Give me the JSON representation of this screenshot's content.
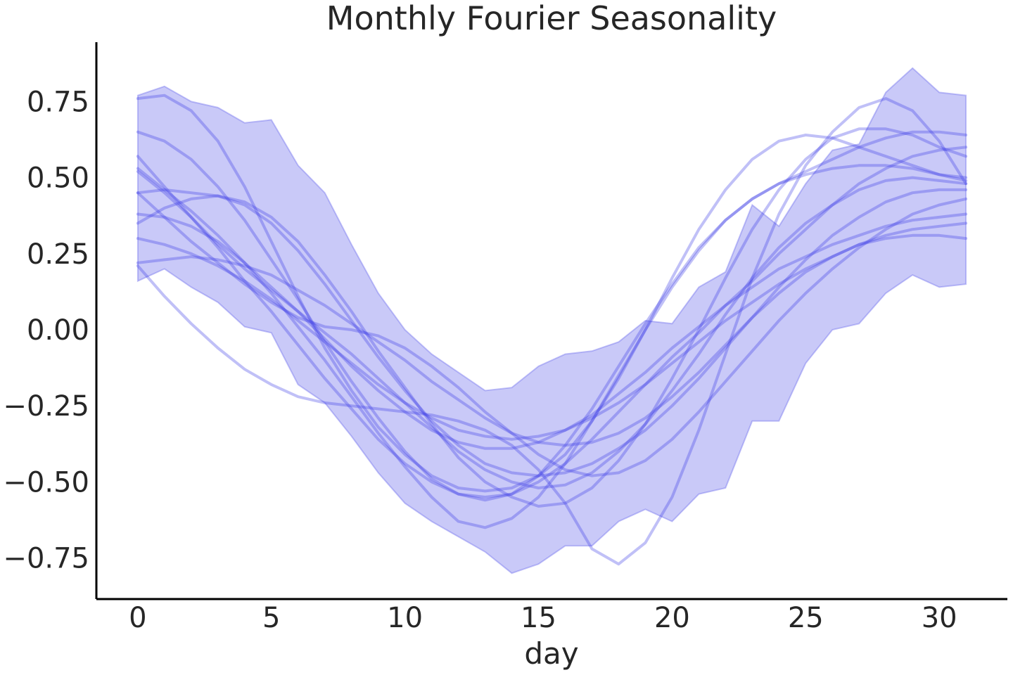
{
  "chart_data": {
    "type": "line",
    "title": "Monthly Fourier Seasonality",
    "xlabel": "day",
    "ylabel": "",
    "xlim": [
      -1.55,
      32.55
    ],
    "ylim": [
      -0.885,
      0.945
    ],
    "xticks": [
      0,
      5,
      10,
      15,
      20,
      25,
      30
    ],
    "yticks": [
      0.75,
      0.5,
      0.25,
      0.0,
      -0.25,
      -0.5,
      -0.75
    ],
    "ytick_labels": [
      "0.75",
      "0.50",
      "0.25",
      "0.00",
      "−0.25",
      "−0.50",
      "−0.75"
    ],
    "grid": false,
    "legend": "none",
    "colors": {
      "band": "#5a5aeb",
      "line": "#3b3be6",
      "axis": "#000000",
      "text": "#262626"
    },
    "band": {
      "x": [
        0,
        1,
        2,
        3,
        4,
        5,
        6,
        7,
        8,
        9,
        10,
        11,
        12,
        13,
        14,
        15,
        16,
        17,
        18,
        19,
        20,
        21,
        22,
        23,
        24,
        25,
        26,
        27,
        28,
        29,
        30,
        31
      ],
      "upper": [
        0.77,
        0.8,
        0.75,
        0.73,
        0.68,
        0.69,
        0.54,
        0.45,
        0.28,
        0.12,
        0.0,
        -0.08,
        -0.14,
        -0.2,
        -0.19,
        -0.12,
        -0.08,
        -0.07,
        -0.04,
        0.03,
        0.02,
        0.14,
        0.19,
        0.41,
        0.34,
        0.48,
        0.59,
        0.61,
        0.78,
        0.86,
        0.78,
        0.77
      ],
      "lower": [
        0.16,
        0.2,
        0.14,
        0.09,
        0.01,
        -0.01,
        -0.18,
        -0.24,
        -0.35,
        -0.47,
        -0.57,
        -0.63,
        -0.68,
        -0.73,
        -0.8,
        -0.77,
        -0.71,
        -0.71,
        -0.63,
        -0.59,
        -0.63,
        -0.54,
        -0.52,
        -0.3,
        -0.3,
        -0.11,
        0.0,
        0.02,
        0.12,
        0.18,
        0.14,
        0.15
      ]
    },
    "x": [
      0,
      1,
      2,
      3,
      4,
      5,
      6,
      7,
      8,
      9,
      10,
      11,
      12,
      13,
      14,
      15,
      16,
      17,
      18,
      19,
      20,
      21,
      22,
      23,
      24,
      25,
      26,
      27,
      28,
      29,
      30,
      31
    ],
    "series": [
      {
        "values": [
          0.76,
          0.77,
          0.72,
          0.62,
          0.47,
          0.29,
          0.11,
          -0.06,
          -0.2,
          -0.32,
          -0.41,
          -0.48,
          -0.52,
          -0.53,
          -0.52,
          -0.48,
          -0.41,
          -0.3,
          -0.16,
          0.0,
          0.17,
          0.33,
          0.46,
          0.56,
          0.62,
          0.64,
          0.63,
          0.6,
          0.57,
          0.54,
          0.51,
          0.5
        ]
      },
      {
        "values": [
          0.65,
          0.62,
          0.56,
          0.47,
          0.36,
          0.23,
          0.1,
          -0.04,
          -0.17,
          -0.29,
          -0.4,
          -0.49,
          -0.54,
          -0.56,
          -0.54,
          -0.48,
          -0.38,
          -0.26,
          -0.12,
          0.02,
          0.15,
          0.27,
          0.36,
          0.43,
          0.48,
          0.52,
          0.56,
          0.6,
          0.63,
          0.65,
          0.65,
          0.64
        ]
      },
      {
        "values": [
          0.57,
          0.47,
          0.37,
          0.28,
          0.2,
          0.13,
          0.06,
          -0.01,
          -0.08,
          -0.16,
          -0.24,
          -0.32,
          -0.4,
          -0.46,
          -0.5,
          -0.52,
          -0.51,
          -0.47,
          -0.4,
          -0.31,
          -0.2,
          -0.08,
          0.05,
          0.17,
          0.27,
          0.35,
          0.41,
          0.46,
          0.49,
          0.5,
          0.49,
          0.48
        ]
      },
      {
        "values": [
          0.53,
          0.46,
          0.39,
          0.31,
          0.22,
          0.12,
          0.01,
          -0.1,
          -0.22,
          -0.34,
          -0.45,
          -0.55,
          -0.63,
          -0.65,
          -0.62,
          -0.55,
          -0.44,
          -0.3,
          -0.15,
          0.0,
          0.14,
          0.26,
          0.36,
          0.43,
          0.48,
          0.51,
          0.53,
          0.54,
          0.54,
          0.53,
          0.51,
          0.49
        ]
      },
      {
        "values": [
          0.45,
          0.46,
          0.45,
          0.44,
          0.41,
          0.35,
          0.26,
          0.15,
          0.03,
          -0.09,
          -0.2,
          -0.3,
          -0.38,
          -0.44,
          -0.47,
          -0.48,
          -0.47,
          -0.44,
          -0.39,
          -0.33,
          -0.25,
          -0.16,
          -0.06,
          0.04,
          0.14,
          0.23,
          0.31,
          0.37,
          0.42,
          0.45,
          0.46,
          0.46
        ]
      },
      {
        "values": [
          0.38,
          0.37,
          0.34,
          0.29,
          0.22,
          0.14,
          0.06,
          -0.03,
          -0.12,
          -0.2,
          -0.27,
          -0.33,
          -0.37,
          -0.39,
          -0.39,
          -0.37,
          -0.33,
          -0.28,
          -0.21,
          -0.14,
          -0.06,
          0.01,
          0.08,
          0.14,
          0.2,
          0.24,
          0.28,
          0.31,
          0.34,
          0.36,
          0.37,
          0.38
        ]
      },
      {
        "values": [
          0.35,
          0.4,
          0.43,
          0.44,
          0.42,
          0.37,
          0.29,
          0.18,
          0.06,
          -0.07,
          -0.19,
          -0.31,
          -0.42,
          -0.5,
          -0.55,
          -0.58,
          -0.57,
          -0.52,
          -0.43,
          -0.31,
          -0.16,
          0.0,
          0.17,
          0.33,
          0.46,
          0.56,
          0.63,
          0.66,
          0.66,
          0.64,
          0.6,
          0.57
        ]
      },
      {
        "values": [
          0.22,
          0.23,
          0.24,
          0.23,
          0.21,
          0.18,
          0.13,
          0.08,
          0.02,
          -0.04,
          -0.1,
          -0.17,
          -0.23,
          -0.29,
          -0.34,
          -0.37,
          -0.38,
          -0.37,
          -0.34,
          -0.29,
          -0.22,
          -0.14,
          -0.05,
          0.04,
          0.12,
          0.19,
          0.24,
          0.28,
          0.3,
          0.31,
          0.31,
          0.3
        ]
      },
      {
        "values": [
          0.45,
          0.37,
          0.29,
          0.22,
          0.15,
          0.09,
          0.04,
          0.01,
          0.0,
          -0.02,
          -0.06,
          -0.12,
          -0.19,
          -0.27,
          -0.34,
          -0.41,
          -0.46,
          -0.48,
          -0.47,
          -0.43,
          -0.36,
          -0.27,
          -0.17,
          -0.07,
          0.03,
          0.12,
          0.2,
          0.27,
          0.33,
          0.38,
          0.41,
          0.43
        ]
      },
      {
        "values": [
          0.52,
          0.45,
          0.37,
          0.27,
          0.16,
          0.06,
          -0.05,
          -0.16,
          -0.26,
          -0.36,
          -0.44,
          -0.5,
          -0.54,
          -0.55,
          -0.54,
          -0.5,
          -0.44,
          -0.36,
          -0.27,
          -0.18,
          -0.09,
          -0.01,
          0.08,
          0.16,
          0.25,
          0.33,
          0.41,
          0.48,
          0.53,
          0.57,
          0.59,
          0.6
        ]
      },
      {
        "values": [
          0.21,
          0.11,
          0.02,
          -0.06,
          -0.13,
          -0.18,
          -0.22,
          -0.24,
          -0.25,
          -0.26,
          -0.27,
          -0.28,
          -0.3,
          -0.33,
          -0.38,
          -0.46,
          -0.57,
          -0.72,
          -0.77,
          -0.7,
          -0.55,
          -0.33,
          -0.08,
          0.17,
          0.38,
          0.54,
          0.65,
          0.73,
          0.76,
          0.72,
          0.62,
          0.48
        ]
      },
      {
        "values": [
          0.3,
          0.28,
          0.25,
          0.21,
          0.16,
          0.1,
          0.03,
          -0.04,
          -0.11,
          -0.18,
          -0.24,
          -0.29,
          -0.33,
          -0.35,
          -0.36,
          -0.35,
          -0.33,
          -0.29,
          -0.24,
          -0.18,
          -0.11,
          -0.04,
          0.03,
          0.09,
          0.15,
          0.2,
          0.24,
          0.28,
          0.31,
          0.33,
          0.34,
          0.35
        ]
      }
    ]
  }
}
